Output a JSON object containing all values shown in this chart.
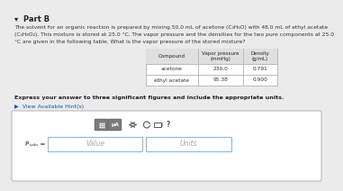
{
  "part_label": "▾  Part B",
  "body_line1": "The solvent for an organic reaction is prepared by mixing 50.0 mL of acetone (C₃H₆O) with 48.0 mL of ethyl acetate",
  "body_line2": "(C₄H₈O₂). This mixture is stored at 25.0 °C. The vapor pressure and the densities for the two pure components at 25.0",
  "body_line3": "°C are given in the following table. What is the vapor pressure of the stored mixture?",
  "table_headers": [
    "Compound",
    "Vapor pressure\n(mmHg)",
    "Density\n(g/mL)"
  ],
  "table_rows": [
    [
      "acetone",
      "230.0",
      "0.791"
    ],
    [
      "ethyl acetate",
      "95.38",
      "0.900"
    ]
  ],
  "bold_text": "Express your answer to three significant figures and include the appropriate units.",
  "hint_text": "▶  View Available Hint(s)",
  "psol_label": "Pₛₒₗₙ =",
  "value_placeholder": "Value",
  "units_placeholder": "Units",
  "bg_color": "#ebebeb",
  "white": "#ffffff",
  "table_header_bg": "#e0e0e0",
  "border_color": "#bbbbbb",
  "text_dark": "#222222",
  "text_body": "#333333",
  "blue_link": "#1155aa",
  "icon_bg": "#7a7a7a",
  "panel_bg": "#f8f8f8",
  "input_border": "#aaaaaa",
  "placeholder_color": "#aaaaaa"
}
